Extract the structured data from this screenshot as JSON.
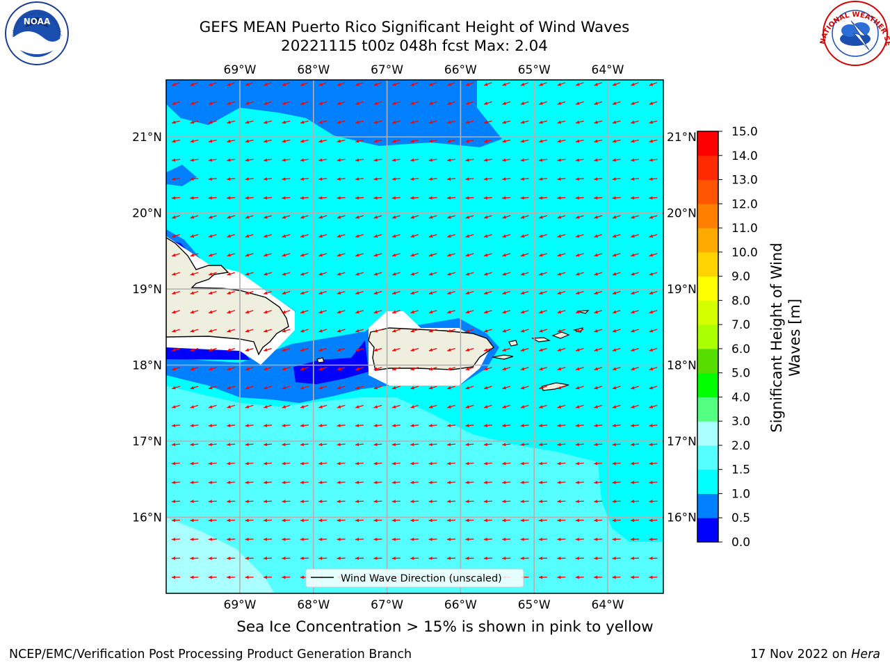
{
  "header": {
    "title_line1": "GEFS MEAN Puerto Rico Significant Height of Wind Waves",
    "title_line2": "20221115 t00z 048h fcst   Max: 2.04"
  },
  "logos": {
    "noaa_text": "NOAA",
    "noaa_ring": "NATIONAL OCEANIC AND ATMOSPHERIC ADMINISTRATION · U.S. DEPARTMENT OF COMMERCE",
    "nws_ring": "NATIONAL WEATHER SERVICE"
  },
  "map": {
    "lon_labels": [
      "69°W",
      "68°W",
      "67°W",
      "66°W",
      "65°W",
      "64°W"
    ],
    "lat_labels": [
      "21°N",
      "20°N",
      "19°N",
      "18°N",
      "17°N",
      "16°N"
    ],
    "lon_values": [
      -69,
      -68,
      -67,
      -66,
      -65,
      -64
    ],
    "lat_values": [
      21,
      20,
      19,
      18,
      17,
      16
    ],
    "legend_label": "Wind Wave Direction (unscaled)"
  },
  "colorbar": {
    "title": "Significant Height of Wind Waves [m]",
    "title_line1": "Significant Height of Wind",
    "title_line2": "Waves [m]",
    "tick_labels": [
      "0.0",
      "0.5",
      "1.0",
      "1.5",
      "2.0",
      "3.0",
      "4.0",
      "5.0",
      "6.0",
      "7.0",
      "8.0",
      "9.0",
      "10.0",
      "11.0",
      "12.0",
      "13.0",
      "14.0",
      "15.0"
    ],
    "colors": [
      "#0000ff",
      "#0080ff",
      "#00ffff",
      "#55ffff",
      "#aaffff",
      "#55ff80",
      "#00ff00",
      "#55dd00",
      "#aaff00",
      "#d4ff00",
      "#ffff00",
      "#ffd400",
      "#ffaa00",
      "#ff8000",
      "#ff5500",
      "#ff2a00",
      "#ff0000"
    ]
  },
  "colors": {
    "land": "#efefdf",
    "arrow": "#ff0000",
    "gridline": "#b0b0b0"
  },
  "footer": {
    "subtitle": "Sea Ice Concentration > 15% is shown in pink to yellow",
    "left": "NCEP/EMC/Verification Post Processing Product Generation Branch",
    "right_date": "17 Nov 2022 on ",
    "right_host": "Hera"
  }
}
